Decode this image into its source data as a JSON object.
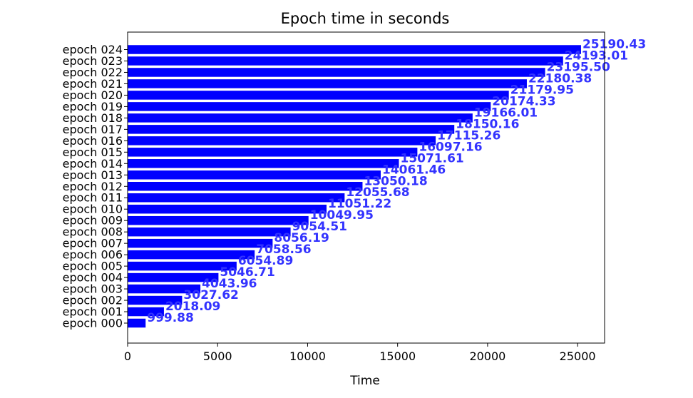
{
  "chart_data": {
    "type": "bar",
    "orientation": "horizontal",
    "title": "Epoch time in seconds",
    "xlabel": "Time",
    "ylabel": "",
    "xlim": [
      0,
      26500
    ],
    "xticks": [
      0,
      5000,
      10000,
      15000,
      20000,
      25000
    ],
    "grid": false,
    "bar_color": "#0000ff",
    "label_color": "#3333ff",
    "categories": [
      "epoch 000",
      "epoch 001",
      "epoch 002",
      "epoch 003",
      "epoch 004",
      "epoch 005",
      "epoch 006",
      "epoch 007",
      "epoch 008",
      "epoch 009",
      "epoch 010",
      "epoch 011",
      "epoch 012",
      "epoch 013",
      "epoch 014",
      "epoch 015",
      "epoch 016",
      "epoch 017",
      "epoch 018",
      "epoch 019",
      "epoch 020",
      "epoch 021",
      "epoch 022",
      "epoch 023",
      "epoch 024"
    ],
    "values": [
      999.88,
      2018.09,
      3027.62,
      4043.96,
      5046.71,
      6054.89,
      7058.56,
      8056.19,
      9054.51,
      10049.95,
      11051.22,
      12055.68,
      13050.18,
      14061.46,
      15071.61,
      16097.16,
      17115.26,
      18150.16,
      19166.01,
      20174.33,
      21179.95,
      22180.38,
      23195.5,
      24193.01,
      25190.43
    ],
    "data_labels": [
      "999.88",
      "2018.09",
      "3027.62",
      "4043.96",
      "5046.71",
      "6054.89",
      "7058.56",
      "8056.19",
      "9054.51",
      "10049.95",
      "11051.22",
      "12055.68",
      "13050.18",
      "14061.46",
      "15071.61",
      "16097.16",
      "17115.26",
      "18150.16",
      "19166.01",
      "20174.33",
      "21179.95",
      "22180.38",
      "23195.50",
      "24193.01",
      "25190.43"
    ]
  }
}
